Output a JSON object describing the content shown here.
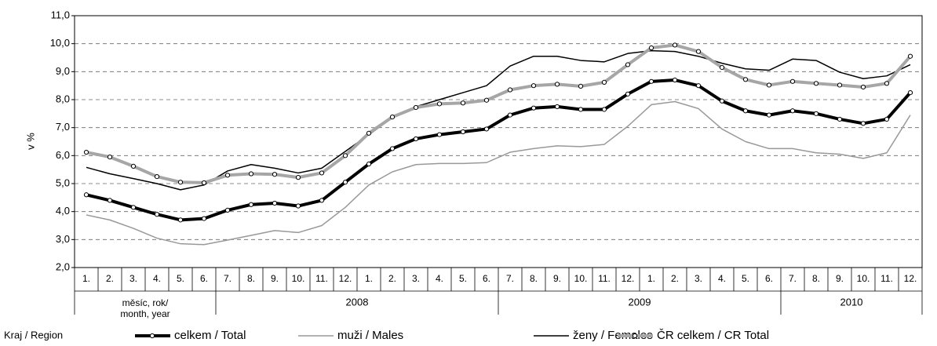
{
  "chart_data": {
    "type": "line",
    "ylabel": "v %",
    "categories": [
      "1.",
      "2.",
      "3.",
      "4.",
      "5.",
      "6.",
      "7.",
      "8.",
      "9.",
      "10.",
      "11.",
      "12.",
      "1.",
      "2.",
      "3.",
      "4.",
      "5.",
      "6.",
      "7.",
      "8.",
      "9.",
      "10.",
      "11.",
      "12.",
      "1.",
      "2.",
      "3.",
      "4.",
      "5.",
      "6.",
      "7.",
      "8.",
      "9.",
      "10.",
      "11.",
      "12."
    ],
    "groups": [
      {
        "label": [
          "měsíc, rok/",
          "month, year"
        ],
        "span": 6
      },
      {
        "label": [
          "2008"
        ],
        "span": 12
      },
      {
        "label": [
          "2009"
        ],
        "span": 12
      },
      {
        "label": [
          "2010"
        ],
        "span": 6
      }
    ],
    "legend_title": "Kraj / Region",
    "ylim": [
      2,
      11
    ],
    "yticks": [
      {
        "value": 2,
        "label": "2,0"
      },
      {
        "value": 3,
        "label": "3,0"
      },
      {
        "value": 4,
        "label": "4,0"
      },
      {
        "value": 5,
        "label": "5,0"
      },
      {
        "value": 6,
        "label": "6,0"
      },
      {
        "value": 7,
        "label": "7,0"
      },
      {
        "value": 8,
        "label": "8,0"
      },
      {
        "value": 9,
        "label": "9,0"
      },
      {
        "value": 10,
        "label": "10,0"
      },
      {
        "value": 11,
        "label": "11,0"
      }
    ],
    "grid": true,
    "legend": "bottom",
    "series": [
      {
        "name": "muži / Males",
        "color": "#999999",
        "width": 1.5,
        "markers": false,
        "values": [
          3.88,
          3.7,
          3.4,
          3.05,
          2.85,
          2.82,
          2.98,
          3.15,
          3.32,
          3.25,
          3.5,
          4.15,
          4.95,
          5.42,
          5.68,
          5.72,
          5.72,
          5.75,
          6.12,
          6.25,
          6.35,
          6.32,
          6.4,
          7.05,
          7.82,
          7.93,
          7.68,
          6.95,
          6.5,
          6.25,
          6.25,
          6.1,
          6.05,
          5.9,
          6.1,
          7.45
        ]
      },
      {
        "name": "ženy / Females",
        "color": "#000000",
        "width": 1.5,
        "markers": false,
        "values": [
          5.58,
          5.35,
          5.18,
          5.0,
          4.78,
          4.95,
          5.45,
          5.68,
          5.55,
          5.38,
          5.55,
          6.15,
          6.75,
          7.35,
          7.75,
          8.0,
          8.25,
          8.5,
          9.2,
          9.55,
          9.55,
          9.4,
          9.35,
          9.65,
          9.75,
          9.72,
          9.55,
          9.3,
          9.1,
          9.05,
          9.45,
          9.4,
          8.98,
          8.75,
          8.85,
          9.25
        ]
      },
      {
        "name": "ČR celkem / CR Total",
        "color": "#a6a6a6",
        "width": 4,
        "markers": true,
        "values": [
          6.12,
          5.95,
          5.62,
          5.25,
          5.05,
          5.03,
          5.3,
          5.35,
          5.33,
          5.22,
          5.38,
          6.0,
          6.8,
          7.38,
          7.72,
          7.85,
          7.88,
          7.98,
          8.35,
          8.5,
          8.55,
          8.48,
          8.62,
          9.25,
          9.85,
          9.95,
          9.72,
          9.15,
          8.72,
          8.52,
          8.65,
          8.58,
          8.52,
          8.45,
          8.58,
          9.55
        ]
      },
      {
        "name": "celkem / Total",
        "color": "#000000",
        "width": 4,
        "markers": true,
        "values": [
          4.6,
          4.4,
          4.15,
          3.9,
          3.7,
          3.75,
          4.05,
          4.25,
          4.3,
          4.2,
          4.4,
          5.05,
          5.7,
          6.25,
          6.6,
          6.75,
          6.85,
          6.95,
          7.45,
          7.7,
          7.75,
          7.65,
          7.65,
          8.2,
          8.65,
          8.7,
          8.5,
          7.95,
          7.6,
          7.45,
          7.6,
          7.5,
          7.3,
          7.15,
          7.3,
          8.25
        ]
      }
    ]
  }
}
